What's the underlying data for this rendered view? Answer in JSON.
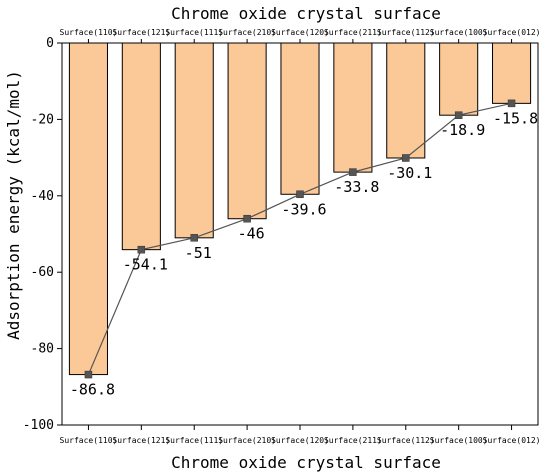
{
  "chart_data": {
    "type": "bar",
    "title": "Chrome oxide crystal surface",
    "xlabel": "Chrome oxide crystal surface",
    "ylabel": "Adsorption energy (kcal/mol)",
    "categories": [
      "Surface(110)",
      "Surface(121)",
      "Surface(111)",
      "Surface(210)",
      "Surface(120)",
      "Surface(211)",
      "Surface(112)",
      "Surface(100)",
      "Surface(012)"
    ],
    "values": [
      -86.8,
      -54.1,
      -51,
      -46,
      -39.6,
      -33.8,
      -30.1,
      -18.9,
      -15.8
    ],
    "data_labels": [
      "-86.8",
      "-54.1",
      "-51",
      "-46",
      "-39.6",
      "-33.8",
      "-30.1",
      "-18.9",
      "-15.8"
    ],
    "ylim": [
      -100,
      0
    ],
    "yticks": [
      0,
      -20,
      -40,
      -60,
      -80,
      -100
    ],
    "overlay": "line-with-square-markers",
    "grid": false,
    "legend": "none",
    "colors": {
      "bar_fill": "#fbc898",
      "bar_stroke": "#000000",
      "line": "#555555",
      "marker": "#555555"
    }
  }
}
